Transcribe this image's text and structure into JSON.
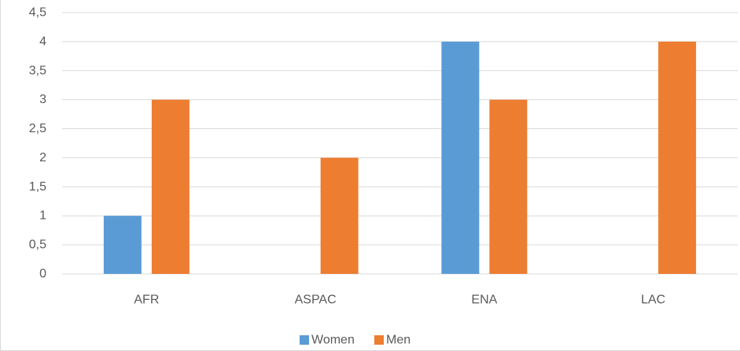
{
  "chart_data": {
    "type": "bar",
    "categories": [
      "AFR",
      "ASPAC",
      "ENA",
      "LAC"
    ],
    "series": [
      {
        "name": "Women",
        "values": [
          1,
          0,
          4,
          0
        ],
        "color": "#5b9bd5"
      },
      {
        "name": "Men",
        "values": [
          3,
          2,
          3,
          4
        ],
        "color": "#ed7d31"
      }
    ],
    "ylim": [
      0,
      4.5
    ],
    "yticks": [
      "0",
      "0,5",
      "1",
      "1,5",
      "2",
      "2,5",
      "3",
      "3,5",
      "4",
      "4,5"
    ],
    "grid": true,
    "gridline_color": "#d9d9d9",
    "legend_position": "bottom"
  }
}
